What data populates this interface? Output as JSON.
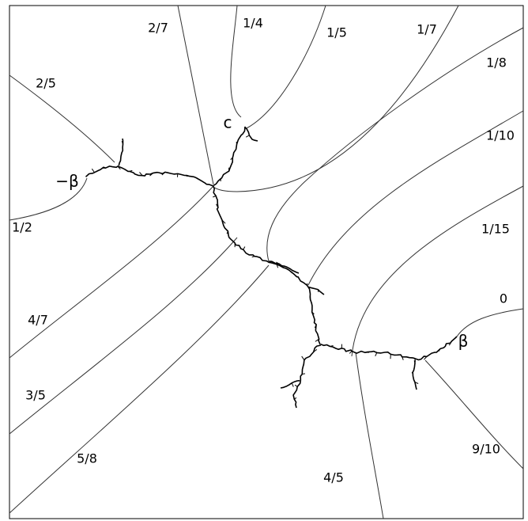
{
  "labels": {
    "ray_2_7": "2/7",
    "ray_1_4": "1/4",
    "ray_1_5": "1/5",
    "ray_1_7": "1/7",
    "ray_1_8": "1/8",
    "ray_2_5": "2/5",
    "point_c": "c",
    "ray_1_10": "1/10",
    "point_minus_beta": "−β",
    "ray_1_2": "1/2",
    "ray_1_15": "1/15",
    "ray_0": "0",
    "ray_4_7": "4/7",
    "point_beta": "β",
    "ray_3_5": "3/5",
    "ray_5_8": "5/8",
    "ray_9_10": "9/10",
    "ray_4_5": "4/5"
  }
}
